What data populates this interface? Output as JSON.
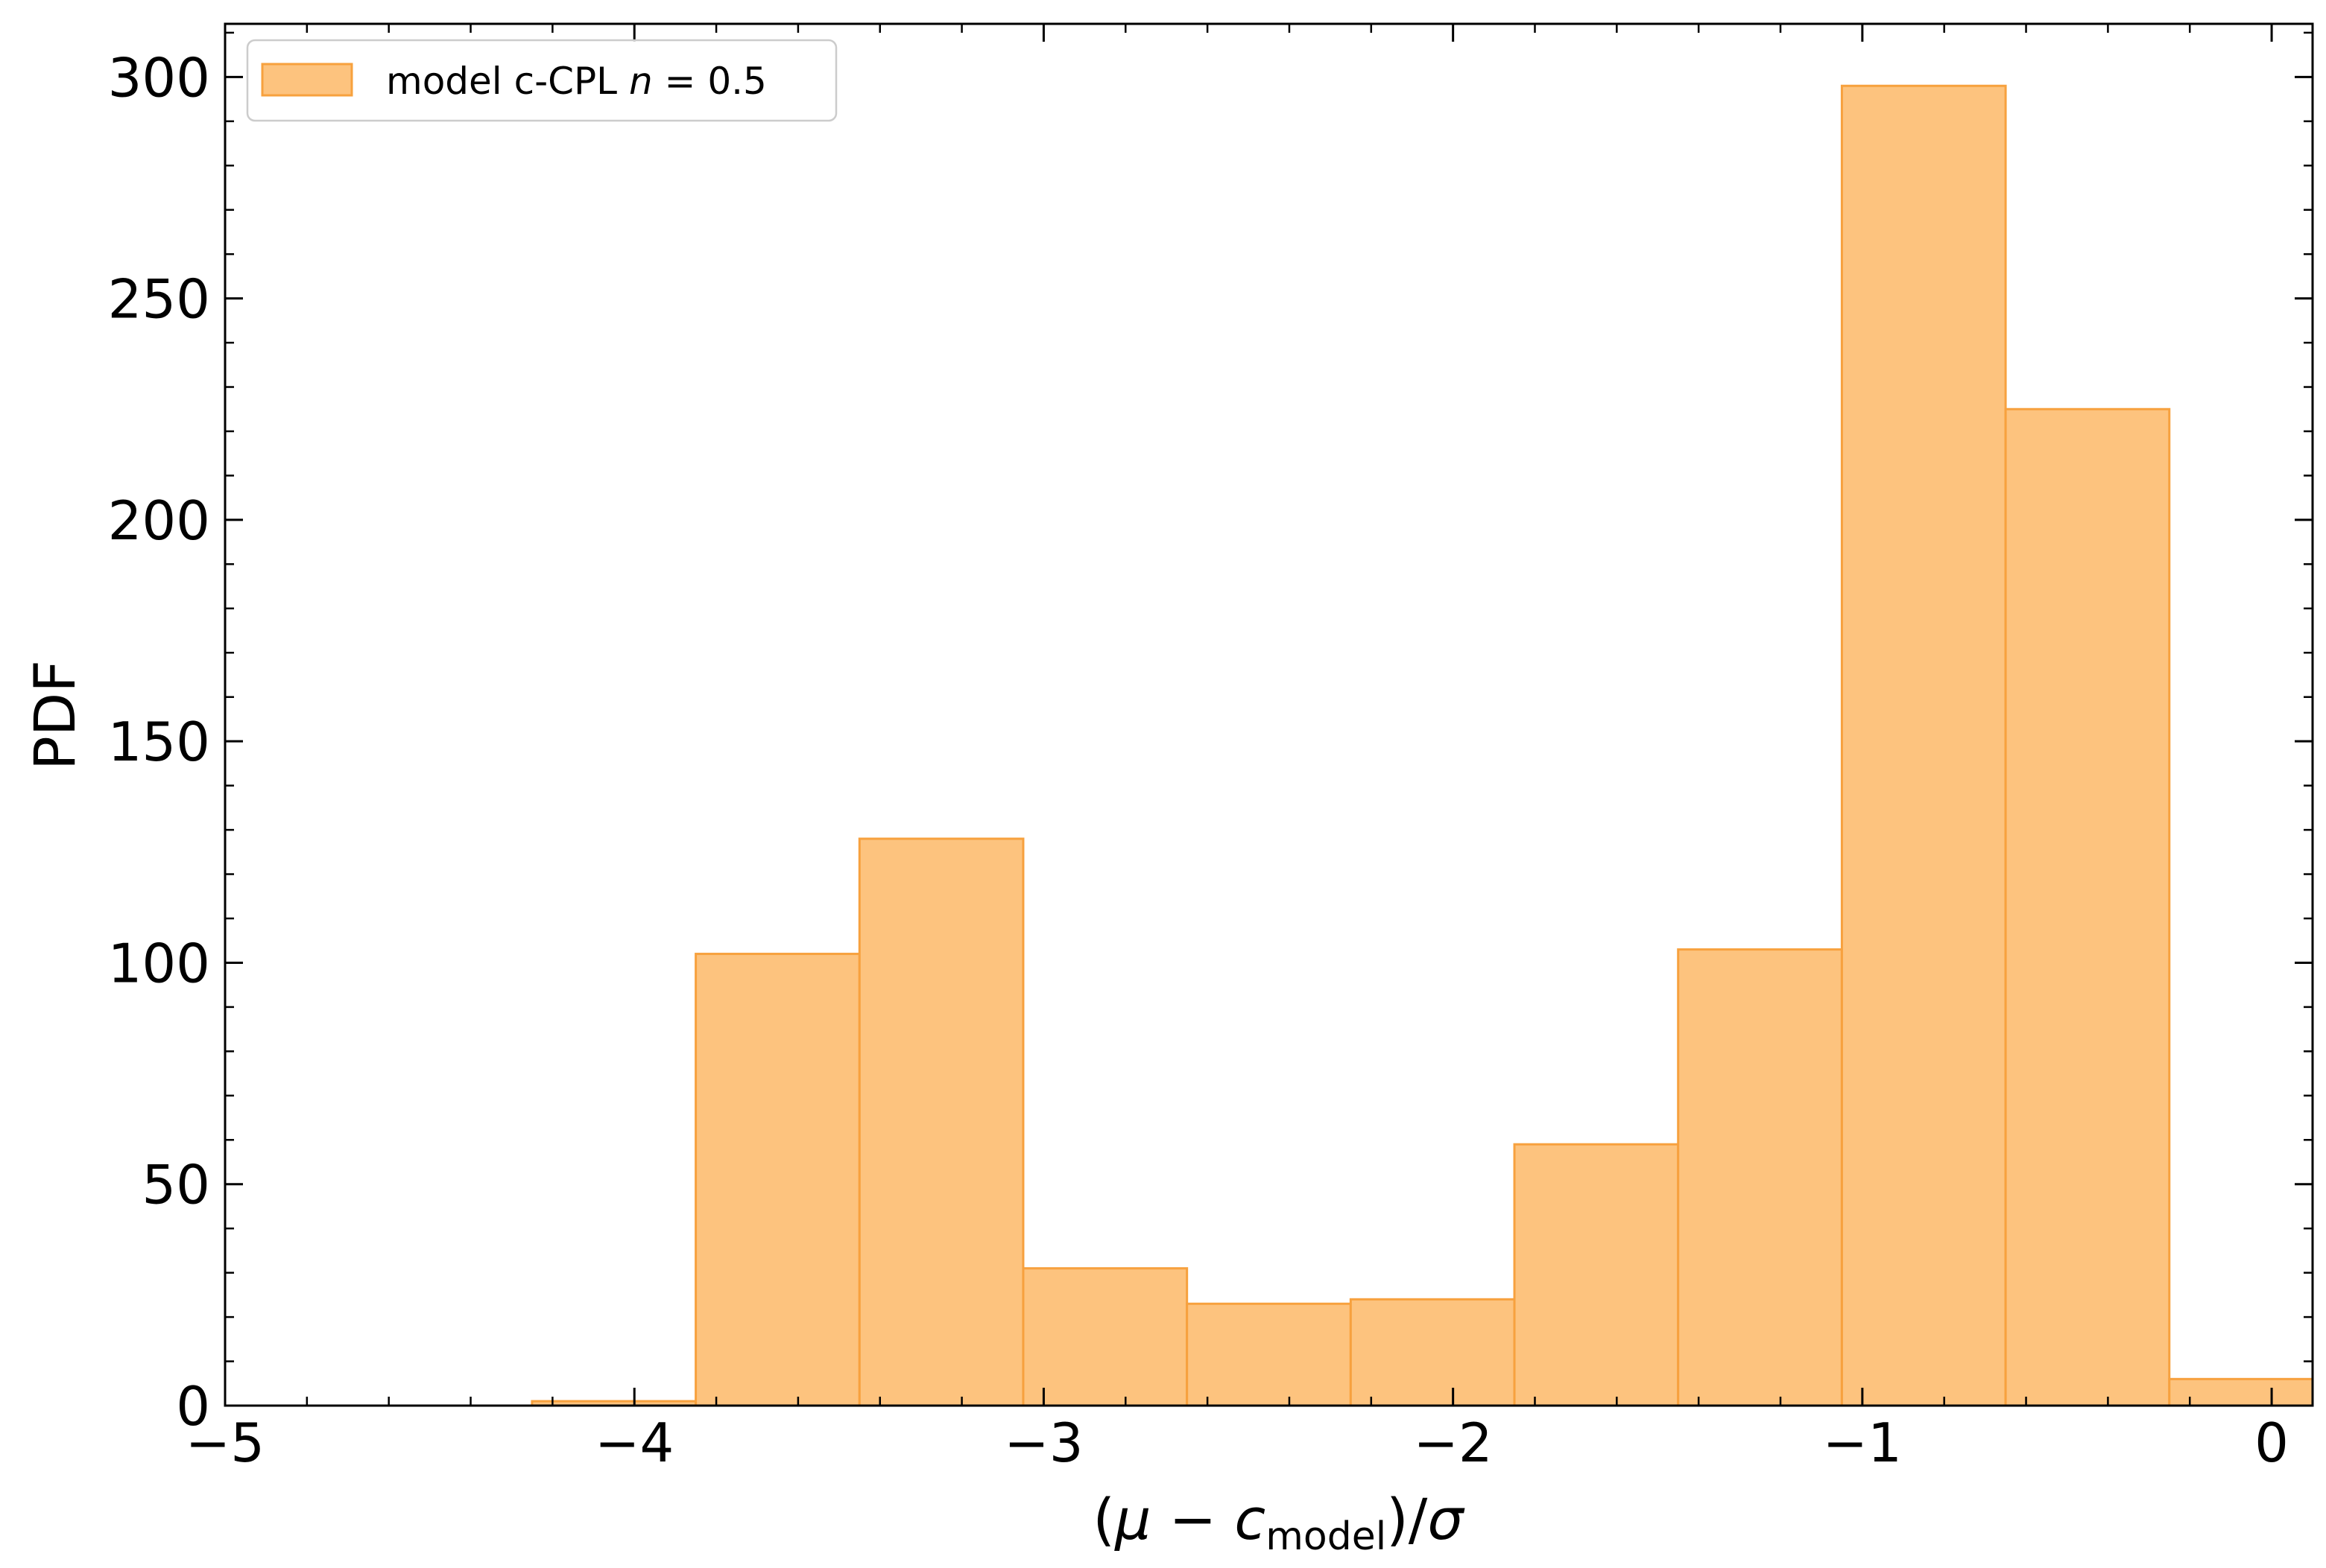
{
  "chart_data": {
    "type": "bar",
    "subtype": "histogram",
    "xlabel": "(μ − c_model)/σ",
    "ylabel": "PDF",
    "xlim": [
      -5,
      0.1
    ],
    "ylim": [
      0,
      312
    ],
    "x_ticks": [
      -5,
      -4,
      -3,
      -2,
      -1,
      0
    ],
    "x_tick_labels": [
      "−5",
      "−4",
      "−3",
      "−2",
      "−1",
      "0"
    ],
    "y_ticks": [
      0,
      50,
      100,
      150,
      200,
      250,
      300
    ],
    "y_tick_labels": [
      "0",
      "50",
      "100",
      "150",
      "200",
      "250",
      "300"
    ],
    "grid": false,
    "legend_position": "top-left",
    "series": [
      {
        "name": "model c-CPL n = 0.5",
        "color": "#FDC37E",
        "edge_color": "#F7A13E",
        "bin_edges": [
          -4.25,
          -3.85,
          -3.45,
          -3.05,
          -2.65,
          -2.25,
          -1.85,
          -1.45,
          -1.05,
          -0.65,
          -0.25,
          0.15
        ],
        "values": [
          1,
          102,
          128,
          31,
          23,
          24,
          59,
          103,
          298,
          225,
          6
        ]
      }
    ],
    "legend": {
      "label_prefix": "model c-CPL ",
      "label_italic": "n",
      "label_suffix": " = 0.5"
    },
    "axis_label_parts": {
      "x_open": "(",
      "x_mu": "μ",
      "x_minus": " − ",
      "x_c": "c",
      "x_sub": "model",
      "x_close": ")/",
      "x_sigma": "σ"
    }
  }
}
